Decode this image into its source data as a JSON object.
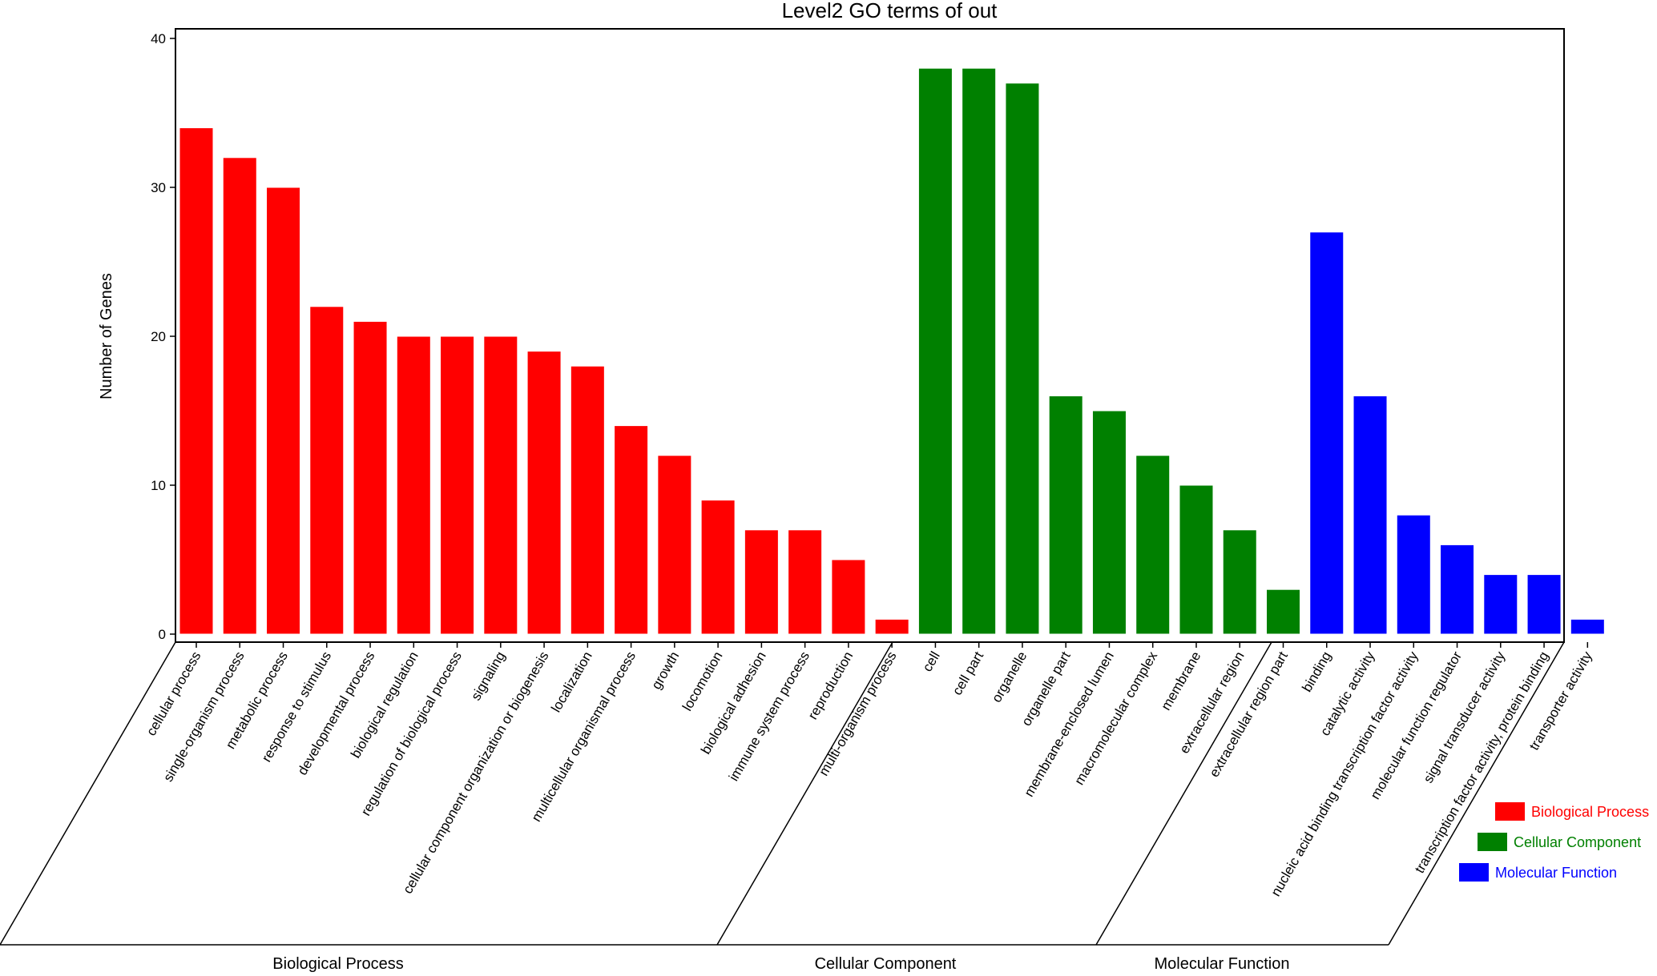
{
  "chart_data": {
    "type": "bar",
    "title": "Level2 GO terms of out",
    "xlabel": "",
    "ylabel": "Number of Genes",
    "ylim": [
      0,
      40
    ],
    "yticks": [
      "0",
      "10",
      "20",
      "30",
      "40"
    ],
    "grid": false,
    "legend_position": "bottom-right",
    "groups": [
      {
        "name": "Biological Process",
        "color": "#ff0000",
        "categories": [
          "cellular process",
          "single-organism process",
          "metabolic process",
          "response to stimulus",
          "developmental process",
          "biological regulation",
          "regulation of biological process",
          "signaling",
          "cellular component organization or biogenesis",
          "localization",
          "multicellular organismal process",
          "growth",
          "locomotion",
          "biological adhesion",
          "immune system process",
          "reproduction",
          "multi-organism process"
        ],
        "values": [
          34,
          32,
          30,
          22,
          21,
          20,
          20,
          20,
          19,
          18,
          14,
          12,
          9,
          7,
          7,
          5,
          1
        ]
      },
      {
        "name": "Cellular Component",
        "color": "#008000",
        "categories": [
          "cell",
          "cell part",
          "organelle",
          "organelle part",
          "membrane-enclosed lumen",
          "macromolecular complex",
          "membrane",
          "extracellular region",
          "extracellular region part"
        ],
        "values": [
          38,
          38,
          37,
          16,
          15,
          12,
          10,
          7,
          3
        ]
      },
      {
        "name": "Molecular Function",
        "color": "#0000ff",
        "categories": [
          "binding",
          "catalytic activity",
          "nucleic acid binding transcription factor activity",
          "molecular function regulator",
          "signal transducer activity",
          "transcription factor activity, protein binding",
          "transporter activity"
        ],
        "values": [
          27,
          16,
          8,
          6,
          4,
          4,
          1
        ]
      }
    ]
  }
}
